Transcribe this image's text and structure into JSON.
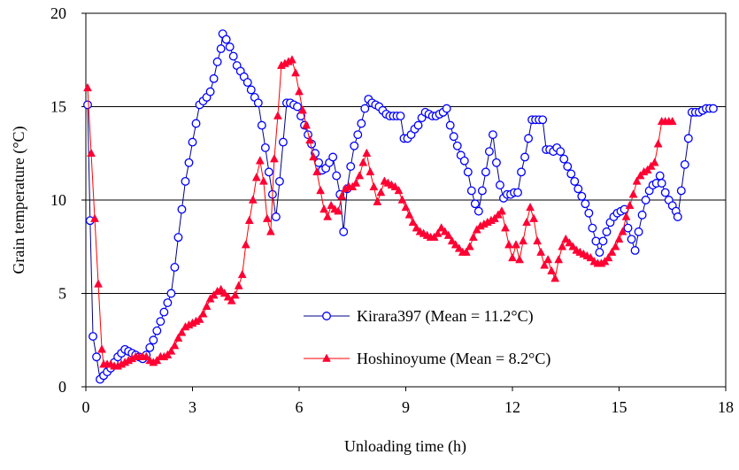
{
  "chart_data": {
    "type": "line",
    "x_label": "Unloading time (h)",
    "y_label": "Grain temperature (°C)",
    "xlim": [
      0,
      18
    ],
    "xticks": [
      0,
      3,
      6,
      9,
      12,
      15,
      18
    ],
    "ylim": [
      0,
      20
    ],
    "yticks": [
      0,
      5,
      10,
      15,
      20
    ],
    "grid": true,
    "series": [
      {
        "name": "Kirara397 (Mean = 11.2°C)",
        "color": "#0000ff",
        "line_color": "#000080",
        "marker": "circle",
        "x": [
          0.05,
          0.12,
          0.2,
          0.3,
          0.4,
          0.5,
          0.6,
          0.7,
          0.8,
          0.9,
          1.0,
          1.1,
          1.2,
          1.3,
          1.4,
          1.5,
          1.6,
          1.7,
          1.8,
          1.9,
          2.0,
          2.1,
          2.2,
          2.3,
          2.4,
          2.5,
          2.6,
          2.7,
          2.8,
          2.9,
          3.0,
          3.1,
          3.2,
          3.3,
          3.4,
          3.5,
          3.6,
          3.7,
          3.8,
          3.85,
          3.95,
          4.05,
          4.15,
          4.25,
          4.35,
          4.45,
          4.55,
          4.65,
          4.75,
          4.85,
          4.95,
          5.05,
          5.15,
          5.25,
          5.35,
          5.45,
          5.55,
          5.65,
          5.75,
          5.85,
          5.95,
          6.05,
          6.15,
          6.25,
          6.35,
          6.45,
          6.55,
          6.65,
          6.75,
          6.85,
          6.95,
          7.05,
          7.15,
          7.25,
          7.35,
          7.45,
          7.55,
          7.65,
          7.75,
          7.85,
          7.95,
          8.05,
          8.15,
          8.25,
          8.35,
          8.45,
          8.55,
          8.65,
          8.75,
          8.85,
          8.95,
          9.05,
          9.15,
          9.25,
          9.35,
          9.45,
          9.55,
          9.65,
          9.75,
          9.85,
          9.95,
          10.05,
          10.15,
          10.25,
          10.35,
          10.45,
          10.55,
          10.65,
          10.75,
          10.85,
          10.95,
          11.05,
          11.15,
          11.25,
          11.35,
          11.45,
          11.55,
          11.65,
          11.75,
          11.85,
          11.95,
          12.05,
          12.15,
          12.25,
          12.35,
          12.45,
          12.55,
          12.65,
          12.75,
          12.85,
          12.95,
          13.05,
          13.15,
          13.25,
          13.35,
          13.45,
          13.55,
          13.65,
          13.75,
          13.85,
          13.95,
          14.05,
          14.15,
          14.25,
          14.35,
          14.45,
          14.55,
          14.65,
          14.75,
          14.85,
          14.95,
          15.05,
          15.15,
          15.25,
          15.35,
          15.45,
          15.55,
          15.65,
          15.75,
          15.85,
          15.95,
          16.05,
          16.15,
          16.2,
          16.3,
          16.4,
          16.5,
          16.6,
          16.65,
          16.75,
          16.85,
          16.95,
          17.05,
          17.15,
          17.25,
          17.35,
          17.45,
          17.55,
          17.65
        ],
        "values": [
          15.1,
          8.9,
          2.7,
          1.6,
          0.4,
          0.6,
          0.8,
          1.0,
          1.3,
          1.6,
          1.8,
          2.0,
          1.9,
          1.8,
          1.7,
          1.6,
          1.5,
          1.7,
          2.1,
          2.5,
          3.0,
          3.5,
          4.0,
          4.5,
          5.0,
          6.4,
          8.0,
          9.5,
          11.0,
          12.0,
          13.1,
          14.1,
          15.1,
          15.3,
          15.5,
          15.8,
          16.5,
          17.4,
          18.1,
          18.9,
          18.6,
          18.2,
          17.7,
          17.2,
          16.9,
          16.6,
          16.3,
          15.9,
          15.5,
          15.2,
          14.0,
          12.8,
          11.5,
          10.3,
          9.1,
          11.0,
          13.1,
          15.2,
          15.2,
          15.1,
          15.0,
          14.5,
          14.0,
          13.5,
          13.0,
          12.5,
          12.0,
          11.6,
          11.7,
          12.0,
          12.3,
          11.3,
          10.3,
          8.3,
          10.6,
          11.8,
          12.9,
          13.5,
          14.1,
          14.9,
          15.4,
          15.2,
          15.1,
          15.0,
          14.8,
          14.6,
          14.5,
          14.5,
          14.5,
          14.5,
          13.3,
          13.3,
          13.5,
          13.8,
          14.0,
          14.4,
          14.7,
          14.6,
          14.5,
          14.5,
          14.6,
          14.7,
          14.9,
          14.0,
          13.4,
          12.9,
          12.4,
          12.1,
          11.5,
          10.5,
          9.8,
          9.4,
          10.5,
          11.5,
          12.6,
          13.5,
          12.0,
          10.8,
          10.1,
          10.3,
          10.3,
          10.4,
          10.4,
          11.5,
          12.3,
          13.3,
          14.3,
          14.3,
          14.3,
          14.3,
          12.7,
          12.7,
          12.6,
          12.8,
          12.6,
          12.2,
          11.8,
          11.4,
          11.0,
          10.6,
          10.2,
          9.8,
          9.3,
          8.5,
          7.8,
          7.2,
          7.8,
          8.3,
          8.8,
          9.1,
          9.3,
          9.4,
          9.5,
          8.5,
          7.9,
          7.3,
          8.3,
          9.2,
          10.0,
          10.5,
          10.8,
          10.9,
          11.3,
          10.9,
          10.4,
          10.0,
          9.7,
          9.4,
          9.1,
          10.5,
          11.9,
          13.3,
          14.7,
          14.7,
          14.7,
          14.8,
          14.9,
          14.9,
          14.9
        ]
      },
      {
        "name": "Hoshinoyume (Mean = 8.2°C)",
        "color": "#ff0033",
        "line_color": "#ff0000",
        "marker": "triangle",
        "x": [
          0.05,
          0.15,
          0.25,
          0.35,
          0.45,
          0.5,
          0.6,
          0.7,
          0.8,
          0.9,
          1.0,
          1.1,
          1.2,
          1.3,
          1.4,
          1.5,
          1.6,
          1.7,
          1.8,
          1.9,
          2.0,
          2.1,
          2.2,
          2.3,
          2.4,
          2.5,
          2.6,
          2.7,
          2.8,
          2.9,
          3.0,
          3.1,
          3.2,
          3.3,
          3.4,
          3.5,
          3.6,
          3.7,
          3.8,
          3.9,
          4.0,
          4.1,
          4.2,
          4.3,
          4.4,
          4.5,
          4.6,
          4.7,
          4.8,
          4.9,
          5.0,
          5.1,
          5.2,
          5.3,
          5.4,
          5.5,
          5.6,
          5.7,
          5.8,
          5.9,
          6.0,
          6.1,
          6.2,
          6.3,
          6.4,
          6.5,
          6.6,
          6.7,
          6.8,
          6.9,
          7.0,
          7.1,
          7.2,
          7.3,
          7.4,
          7.5,
          7.6,
          7.7,
          7.8,
          7.9,
          8.0,
          8.1,
          8.2,
          8.3,
          8.4,
          8.5,
          8.6,
          8.7,
          8.8,
          8.9,
          9.0,
          9.1,
          9.2,
          9.3,
          9.4,
          9.5,
          9.6,
          9.7,
          9.8,
          9.9,
          10.0,
          10.1,
          10.2,
          10.3,
          10.4,
          10.5,
          10.6,
          10.7,
          10.8,
          10.9,
          11.0,
          11.1,
          11.2,
          11.3,
          11.4,
          11.5,
          11.6,
          11.7,
          11.8,
          11.9,
          12.0,
          12.1,
          12.2,
          12.3,
          12.4,
          12.5,
          12.6,
          12.7,
          12.8,
          12.9,
          13.0,
          13.1,
          13.2,
          13.3,
          13.4,
          13.5,
          13.6,
          13.7,
          13.8,
          13.9,
          14.0,
          14.1,
          14.2,
          14.3,
          14.4,
          14.5,
          14.6,
          14.7,
          14.8,
          14.9,
          15.0,
          15.1,
          15.2,
          15.3,
          15.4,
          15.5,
          15.6,
          15.7,
          15.8,
          15.9,
          16.0,
          16.1,
          16.2,
          16.3,
          16.4,
          16.5
        ],
        "values": [
          16.0,
          12.5,
          9.0,
          5.5,
          2.0,
          1.2,
          1.2,
          1.2,
          1.1,
          1.1,
          1.2,
          1.3,
          1.4,
          1.5,
          1.6,
          1.6,
          1.6,
          1.6,
          1.4,
          1.3,
          1.4,
          1.6,
          1.6,
          1.7,
          1.9,
          2.2,
          2.6,
          2.9,
          3.2,
          3.3,
          3.4,
          3.5,
          3.6,
          3.9,
          4.3,
          4.7,
          4.9,
          5.1,
          5.2,
          5.0,
          4.8,
          4.6,
          4.9,
          5.4,
          6.0,
          7.6,
          8.9,
          10.0,
          11.2,
          12.1,
          11.0,
          9.0,
          8.3,
          12.2,
          14.5,
          17.2,
          17.3,
          17.4,
          17.5,
          16.8,
          15.8,
          14.8,
          14.0,
          13.2,
          12.3,
          11.5,
          10.5,
          9.5,
          9.1,
          9.7,
          9.5,
          9.4,
          10.2,
          10.6,
          10.7,
          10.7,
          10.9,
          11.3,
          12.0,
          12.5,
          11.5,
          10.7,
          9.9,
          10.4,
          11.0,
          10.9,
          10.8,
          10.7,
          10.5,
          10.0,
          9.6,
          9.2,
          8.8,
          8.5,
          8.3,
          8.2,
          8.1,
          8.0,
          8.0,
          8.2,
          8.5,
          8.3,
          8.1,
          7.8,
          7.6,
          7.4,
          7.2,
          7.2,
          7.5,
          8.0,
          8.4,
          8.6,
          8.7,
          8.8,
          8.9,
          9.0,
          9.2,
          9.4,
          8.5,
          7.6,
          6.9,
          7.6,
          6.8,
          7.8,
          8.8,
          9.6,
          9.0,
          7.8,
          7.2,
          6.5,
          6.8,
          6.2,
          5.8,
          6.8,
          7.5,
          7.9,
          7.7,
          7.5,
          7.3,
          7.2,
          7.1,
          7.0,
          6.9,
          6.7,
          6.6,
          6.6,
          6.7,
          6.9,
          7.2,
          7.5,
          7.9,
          8.3,
          9.1,
          9.7,
          10.3,
          11.0,
          11.3,
          11.5,
          11.6,
          11.8,
          12.0,
          13.0,
          14.2,
          14.2,
          14.2,
          14.2
        ]
      }
    ]
  }
}
